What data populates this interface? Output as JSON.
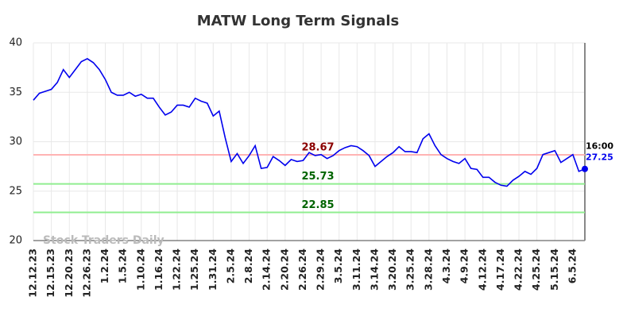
{
  "chart_data": {
    "type": "line",
    "title": "MATW Long Term Signals",
    "categories": [
      "12.12.23",
      null,
      null,
      "12.15.23",
      null,
      null,
      "12.20.23",
      null,
      null,
      "12.26.23",
      null,
      null,
      "1.2.24",
      null,
      null,
      "1.5.24",
      null,
      null,
      "1.10.24",
      null,
      null,
      "1.16.24",
      null,
      null,
      "1.22.24",
      null,
      null,
      "1.25.24",
      null,
      null,
      "1.31.24",
      null,
      null,
      "2.5.24",
      null,
      null,
      "2.8.24",
      null,
      null,
      "2.14.24",
      null,
      null,
      "2.20.24",
      null,
      null,
      "2.26.24",
      null,
      null,
      "2.29.24",
      null,
      null,
      "3.5.24",
      null,
      null,
      "3.11.24",
      null,
      null,
      "3.14.24",
      null,
      null,
      "3.20.24",
      null,
      null,
      "3.25.24",
      null,
      null,
      "3.28.24",
      null,
      null,
      "4.3.24",
      null,
      null,
      "4.9.24",
      null,
      null,
      "4.12.24",
      null,
      null,
      "4.17.24",
      null,
      null,
      "4.22.24",
      null,
      null,
      "4.25.24",
      null,
      null,
      "5.15.24",
      null,
      null,
      "6.5.24",
      null,
      null
    ],
    "series": [
      {
        "color": "#0000ee",
        "values": [
          34.2,
          34.9,
          35.1,
          35.3,
          36.0,
          37.3,
          36.5,
          37.3,
          38.1,
          38.4,
          38.0,
          37.3,
          36.3,
          35.0,
          34.7,
          34.7,
          35.0,
          34.6,
          34.8,
          34.4,
          34.4,
          33.5,
          32.7,
          33.0,
          33.7,
          33.7,
          33.5,
          34.4,
          34.1,
          33.9,
          32.6,
          33.1,
          30.4,
          28.0,
          28.8,
          27.8,
          28.6,
          29.6,
          27.3,
          27.4,
          28.5,
          28.1,
          27.6,
          28.2,
          28.0,
          28.1,
          28.9,
          28.6,
          28.7,
          28.3,
          28.6,
          29.1,
          29.4,
          29.6,
          29.5,
          29.1,
          28.6,
          27.5,
          28.0,
          28.5,
          28.9,
          29.5,
          29.0,
          29.0,
          28.9,
          30.3,
          30.8,
          29.6,
          28.7,
          28.3,
          28.0,
          27.8,
          28.3,
          27.3,
          27.2,
          26.4,
          26.4,
          25.9,
          25.6,
          25.5,
          26.1,
          26.5,
          27.0,
          26.7,
          27.3,
          28.7,
          28.9,
          29.1,
          27.9,
          28.3,
          28.7,
          27.0,
          27.25
        ]
      }
    ],
    "hlines": [
      {
        "value": 28.67,
        "color": "#ffb3b3",
        "label_color": "#8b0000"
      },
      {
        "value": 25.73,
        "color": "#90ee90",
        "label_color": "#006400"
      },
      {
        "value": 22.85,
        "color": "#90ee90",
        "label_color": "#006400"
      }
    ],
    "last_time": "16:00",
    "watermark": "Stock Traders Daily",
    "ylim": [
      20,
      40
    ],
    "yticks": [
      20,
      25,
      30,
      35,
      40
    ],
    "grid": true
  }
}
